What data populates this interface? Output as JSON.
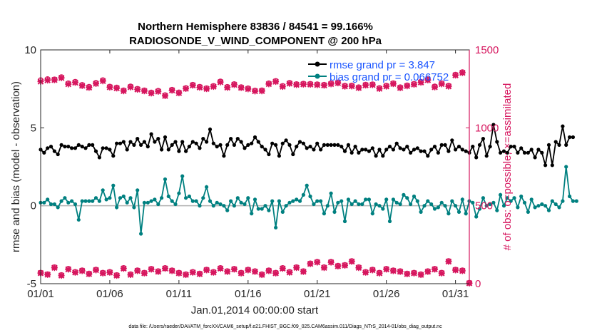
{
  "chart_data": {
    "type": "line",
    "title_line1": "Northern Hemisphere 83836 / 84541 = 99.166%",
    "title_line2": "RADIOSONDE_V_WIND_COMPONENT @ 200 hPa",
    "xlabel": "Jan.01,2014 00:00:00 start",
    "ylabel_left": "rmse and bias (model - observation)",
    "ylabel_right": "# of obs: o=possible; ×=assimilated",
    "x_tick_labels": [
      "01/01",
      "01/06",
      "01/11",
      "01/16",
      "01/21",
      "01/26",
      "01/31"
    ],
    "x_tick_days": [
      1,
      6,
      11,
      16,
      21,
      26,
      31
    ],
    "xlim": [
      1,
      32
    ],
    "y_left_ticks": [
      "-5",
      "0",
      "5",
      "10"
    ],
    "y_left_tick_values": [
      -5,
      0,
      5,
      10
    ],
    "ylim_left": [
      -5,
      10
    ],
    "y_right_ticks": [
      "0",
      "500",
      "1000",
      "1500"
    ],
    "y_right_tick_values": [
      0,
      500,
      1000,
      1500
    ],
    "ylim_right": [
      0,
      1500
    ],
    "legend": {
      "rmse": "rmse grand pr = 3.847",
      "bias": "bias grand pr = 0.066752"
    },
    "footnote": "data file: /Users/raeder/DAI/ATM_forcXX/CAM6_setup/f.e21.FHIST_BGC.f09_025.CAM6assim.011/Diags_NTrS_2014-01/obs_diag_output.nc",
    "colors": {
      "rmse": "#000000",
      "bias": "#008080",
      "obs": "#d6165e",
      "zero_line": "#b3b3b3",
      "legend_text": "#1a55ff"
    },
    "series": [
      {
        "name": "rmse",
        "x_start": 1.0,
        "x_step": 0.25,
        "values": [
          3.6,
          3.4,
          3.7,
          3.8,
          3.5,
          3.3,
          3.9,
          3.8,
          3.8,
          3.7,
          3.7,
          3.9,
          3.8,
          3.7,
          3.9,
          3.9,
          3.5,
          3.1,
          3.7,
          3.7,
          3.6,
          3.2,
          4.0,
          4.0,
          4.1,
          3.6,
          4.1,
          3.9,
          4.3,
          3.9,
          4.1,
          3.8,
          4.6,
          4.1,
          4.3,
          3.6,
          4.4,
          3.6,
          3.9,
          4.1,
          3.5,
          4.1,
          3.5,
          3.8,
          4.1,
          4.0,
          3.7,
          4.3,
          4.1,
          4.9,
          4.0,
          3.8,
          3.9,
          3.2,
          3.9,
          4.3,
          3.9,
          4.3,
          4.1,
          3.7,
          3.9,
          4.0,
          4.4,
          4.1,
          3.8,
          3.6,
          3.3,
          4.0,
          3.9,
          3.2,
          4.0,
          4.2,
          3.9,
          3.3,
          3.8,
          4.1,
          4.0,
          3.7,
          3.8,
          3.6,
          4.0,
          3.6,
          3.9,
          3.9,
          3.9,
          3.9,
          3.9,
          3.8,
          3.5,
          3.9,
          3.4,
          3.8,
          3.4,
          3.6,
          3.6,
          3.5,
          3.7,
          3.2,
          3.6,
          3.2,
          3.6,
          3.8,
          3.6,
          4.0,
          3.7,
          3.6,
          3.8,
          3.4,
          3.6,
          3.7,
          3.5,
          3.5,
          3.2,
          3.6,
          3.8,
          3.4,
          3.9,
          3.9,
          3.5,
          4.2,
          3.6,
          3.8,
          3.6,
          3.5,
          3.4,
          3.8,
          3.1,
          3.9,
          4.3,
          3.2,
          3.8,
          5.2,
          4.1,
          3.4,
          3.5,
          3.4,
          3.8,
          3.8,
          3.4,
          3.7,
          3.4,
          3.4,
          3.6,
          3.1,
          3.6,
          3.4,
          2.6,
          3.9,
          2.6,
          4.1,
          3.9,
          5.1,
          3.9,
          4.4,
          4.4
        ]
      },
      {
        "name": "bias",
        "x_start": 1.0,
        "x_step": 0.25,
        "values": [
          0.2,
          0.2,
          0.4,
          0.1,
          0.1,
          -0.1,
          0.3,
          0.5,
          0.2,
          0.3,
          0.1,
          -0.9,
          0.3,
          0.3,
          0.3,
          0.3,
          0.5,
          0.3,
          1.0,
          0.4,
          0.5,
          1.3,
          -0.1,
          0.5,
          0.6,
          0.2,
          0.5,
          -0.1,
          1.0,
          -1.8,
          0.2,
          0.2,
          0.3,
          0.4,
          0.1,
          0.5,
          1.7,
          0.6,
          0.3,
          0.1,
          0.8,
          1.9,
          0.5,
          0.6,
          0.3,
          0.3,
          0.0,
          0.5,
          1.2,
          0.3,
          0.0,
          0.2,
          0.1,
          0.0,
          -0.3,
          0.3,
          0.0,
          0.5,
          0.2,
          0.1,
          0.5,
          -0.5,
          0.4,
          -0.2,
          -0.2,
          0.0,
          -0.3,
          0.3,
          -1.4,
          0.3,
          -0.4,
          0.0,
          0.2,
          0.3,
          0.4,
          0.3,
          0.7,
          1.3,
          0.6,
          0.1,
          0.3,
          0.3,
          -0.5,
          0.0,
          0.8,
          -0.4,
          0.2,
          0.3,
          -1.0,
          0.4,
          0.1,
          0.3,
          0.1,
          0.1,
          0.4,
          0.4,
          -0.5,
          0.1,
          0.0,
          -0.2,
          0.4,
          -1.0,
          0.4,
          0.2,
          0.1,
          0.7,
          0.5,
          0.1,
          0.6,
          0.3,
          -0.4,
          0.0,
          0.3,
          0.1,
          -0.2,
          -0.1,
          0.2,
          0.0,
          -0.5,
          0.3,
          0.0,
          -0.4,
          0.4,
          -0.5,
          0.3,
          0.2,
          -0.7,
          -0.2,
          0.5,
          0.0,
          0.1,
          0.2,
          -0.3,
          0.7,
          0.0,
          0.5,
          0.3,
          0.5,
          -0.1,
          0.6,
          0.2,
          -0.4,
          0.4,
          -0.1,
          0.0,
          0.1,
          0.0,
          -0.3,
          0.3,
          0.1,
          -0.1,
          0.3,
          2.5,
          0.6,
          0.3,
          0.3
        ]
      },
      {
        "name": "obs_possible",
        "x_start": 1.0,
        "x_step": 0.5,
        "values": [
          1305,
          1312,
          1310,
          1325,
          1285,
          1295,
          1275,
          1263,
          1288,
          1305,
          1264,
          1258,
          1240,
          1265,
          1250,
          1240,
          1226,
          1237,
          1209,
          1244,
          1227,
          1255,
          1276,
          1263,
          1254,
          1268,
          1297,
          1262,
          1280,
          1261,
          1253,
          1239,
          1240,
          1285,
          1300,
          1268,
          1288,
          1280,
          1283,
          1282,
          1279,
          1276,
          1285,
          1291,
          1270,
          1271,
          1260,
          1277,
          1279,
          1255,
          1270,
          1286,
          1260,
          1272,
          1282,
          1295,
          1310,
          1265,
          1285,
          1270,
          1341,
          1357
        ]
      },
      {
        "name": "obs_assimilated",
        "x_start": 1.0,
        "x_step": 0.5,
        "values": [
          1297,
          1305,
          1307,
          1320,
          1280,
          1290,
          1270,
          1258,
          1283,
          1300,
          1260,
          1254,
          1236,
          1261,
          1246,
          1236,
          1222,
          1233,
          1205,
          1240,
          1223,
          1251,
          1272,
          1259,
          1250,
          1264,
          1293,
          1258,
          1276,
          1257,
          1249,
          1235,
          1236,
          1281,
          1296,
          1264,
          1284,
          1276,
          1279,
          1278,
          1275,
          1272,
          1281,
          1287,
          1266,
          1267,
          1256,
          1273,
          1275,
          1251,
          1266,
          1282,
          1256,
          1268,
          1278,
          1291,
          1306,
          1261,
          1281,
          1266,
          1337,
          1353
        ]
      },
      {
        "name": "obs_possible_lower",
        "x_start": 1.0,
        "x_step": 0.5,
        "values": [
          70,
          60,
          105,
          55,
          95,
          75,
          85,
          65,
          90,
          70,
          75,
          55,
          100,
          60,
          85,
          70,
          95,
          80,
          100,
          85,
          70,
          60,
          75,
          65,
          90,
          75,
          100,
          80,
          95,
          70,
          90,
          80,
          60,
          85,
          70,
          100,
          75,
          105,
          80,
          130,
          140,
          105,
          140,
          115,
          120,
          145,
          105,
          75,
          90,
          70,
          95,
          85,
          80,
          65,
          70,
          60,
          80,
          95,
          70,
          145,
          90,
          85,
          5
        ]
      },
      {
        "name": "obs_assimilated_lower",
        "x_start": 1.0,
        "x_step": 0.5,
        "values": [
          68,
          58,
          102,
          52,
          92,
          72,
          82,
          62,
          87,
          67,
          72,
          52,
          97,
          57,
          82,
          67,
          92,
          77,
          97,
          82,
          67,
          57,
          72,
          62,
          87,
          72,
          97,
          77,
          92,
          67,
          87,
          77,
          57,
          82,
          67,
          97,
          72,
          102,
          77,
          127,
          137,
          102,
          137,
          112,
          117,
          142,
          102,
          72,
          87,
          67,
          92,
          82,
          77,
          62,
          67,
          57,
          77,
          92,
          67,
          142,
          87,
          82,
          3
        ]
      }
    ]
  }
}
